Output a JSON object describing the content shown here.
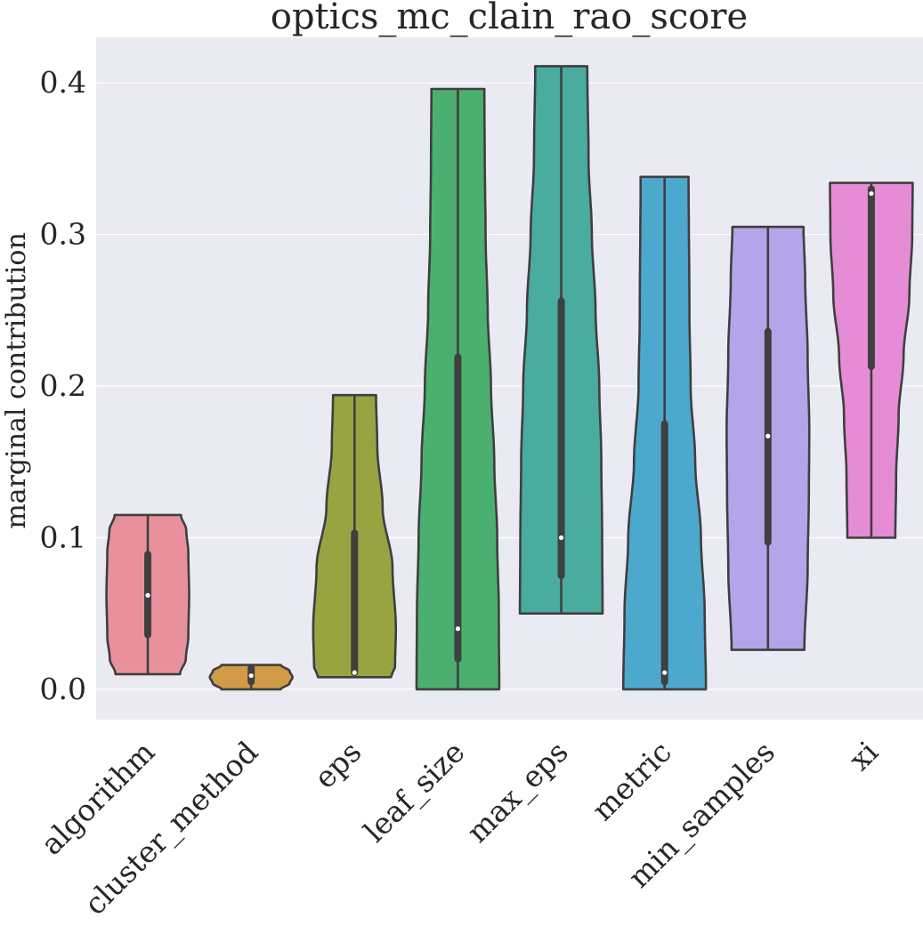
{
  "chart_data": {
    "type": "violin",
    "title": "optics_mc_clain_rao_score",
    "xlabel": "",
    "ylabel": "marginal contribution",
    "ylim": [
      -0.02,
      0.43
    ],
    "yticks": [
      0.0,
      0.1,
      0.2,
      0.3,
      0.4
    ],
    "ytick_labels": [
      "0.0",
      "0.1",
      "0.2",
      "0.3",
      "0.4"
    ],
    "grid": true,
    "background": "#EAEAF2",
    "categories": [
      "algorithm",
      "cluster_method",
      "eps",
      "leaf_size",
      "max_eps",
      "metric",
      "min_samples",
      "xi"
    ],
    "violins": [
      {
        "category": "algorithm",
        "color": "#E8919C",
        "min": 0.01,
        "max": 0.115,
        "q1": 0.036,
        "median": 0.062,
        "q3": 0.089,
        "profile": [
          [
            0.01,
            0.78
          ],
          [
            0.02,
            0.92
          ],
          [
            0.035,
            0.98
          ],
          [
            0.062,
            1.0
          ],
          [
            0.09,
            0.98
          ],
          [
            0.105,
            0.93
          ],
          [
            0.115,
            0.8
          ]
        ]
      },
      {
        "category": "cluster_method",
        "color": "#D09A47",
        "min": 0.0,
        "max": 0.016,
        "q1": 0.005,
        "median": 0.009,
        "q3": 0.014,
        "profile": [
          [
            0.0,
            0.72
          ],
          [
            0.004,
            0.93
          ],
          [
            0.008,
            1.0
          ],
          [
            0.012,
            0.93
          ],
          [
            0.016,
            0.72
          ]
        ]
      },
      {
        "category": "eps",
        "color": "#98A442",
        "min": 0.008,
        "max": 0.194,
        "q1": 0.011,
        "median": 0.011,
        "q3": 0.103,
        "profile": [
          [
            0.008,
            0.88
          ],
          [
            0.015,
            0.98
          ],
          [
            0.04,
            1.0
          ],
          [
            0.08,
            0.92
          ],
          [
            0.12,
            0.68
          ],
          [
            0.16,
            0.55
          ],
          [
            0.194,
            0.52
          ]
        ]
      },
      {
        "category": "leaf_size",
        "color": "#4BB06F",
        "min": 0.0,
        "max": 0.396,
        "q1": 0.02,
        "median": 0.04,
        "q3": 0.219,
        "profile": [
          [
            0.0,
            1.0
          ],
          [
            0.05,
            0.99
          ],
          [
            0.1,
            0.95
          ],
          [
            0.15,
            0.88
          ],
          [
            0.2,
            0.8
          ],
          [
            0.25,
            0.72
          ],
          [
            0.3,
            0.67
          ],
          [
            0.35,
            0.65
          ],
          [
            0.396,
            0.64
          ]
        ]
      },
      {
        "category": "max_eps",
        "color": "#4AAB9F",
        "min": 0.05,
        "max": 0.411,
        "q1": 0.075,
        "median": 0.1,
        "q3": 0.256,
        "profile": [
          [
            0.05,
            1.0
          ],
          [
            0.1,
            0.99
          ],
          [
            0.15,
            0.97
          ],
          [
            0.2,
            0.92
          ],
          [
            0.25,
            0.83
          ],
          [
            0.3,
            0.74
          ],
          [
            0.35,
            0.66
          ],
          [
            0.411,
            0.63
          ]
        ]
      },
      {
        "category": "metric",
        "color": "#4DA8CE",
        "min": 0.0,
        "max": 0.338,
        "q1": 0.005,
        "median": 0.011,
        "q3": 0.175,
        "profile": [
          [
            0.0,
            1.0
          ],
          [
            0.05,
            0.97
          ],
          [
            0.1,
            0.88
          ],
          [
            0.15,
            0.74
          ],
          [
            0.2,
            0.63
          ],
          [
            0.25,
            0.6
          ],
          [
            0.338,
            0.58
          ]
        ]
      },
      {
        "category": "min_samples",
        "color": "#B4A5EA",
        "min": 0.026,
        "max": 0.305,
        "q1": 0.097,
        "median": 0.167,
        "q3": 0.236,
        "profile": [
          [
            0.026,
            0.88
          ],
          [
            0.08,
            0.96
          ],
          [
            0.13,
            0.99
          ],
          [
            0.17,
            1.0
          ],
          [
            0.22,
            0.96
          ],
          [
            0.27,
            0.9
          ],
          [
            0.305,
            0.86
          ]
        ]
      },
      {
        "category": "xi",
        "color": "#E68BD6",
        "min": 0.1,
        "max": 0.334,
        "q1": 0.213,
        "median": 0.327,
        "q3": 0.33,
        "profile": [
          [
            0.1,
            0.58
          ],
          [
            0.14,
            0.6
          ],
          [
            0.18,
            0.66
          ],
          [
            0.22,
            0.78
          ],
          [
            0.26,
            0.92
          ],
          [
            0.3,
            0.99
          ],
          [
            0.334,
            1.0
          ]
        ]
      }
    ]
  }
}
